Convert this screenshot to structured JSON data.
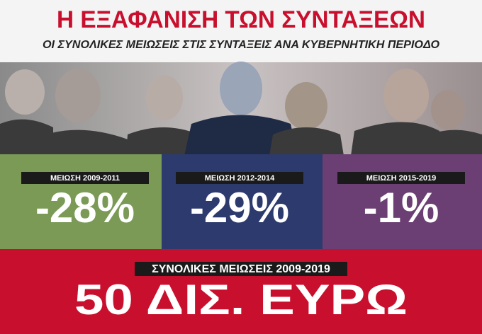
{
  "header": {
    "title": "Η ΕΞΑΦΑΝΙΣΗ ΤΩΝ ΣΥΝΤΑΞΕΩΝ",
    "subtitle": "ΟΙ ΣΥΝΟΛΙΚΕΣ ΜΕΙΩΣΕΙΣ ΣΤΙΣ ΣΥΝΤΑΞΕΙΣ ΑΝΑ ΚΥΒΕΡΝΗΤΙΚΗ ΠΕΡΙΟΔΟ"
  },
  "panels": [
    {
      "label": "ΜΕΙΩΣΗ 2009-2011",
      "value": "-28%"
    },
    {
      "label": "ΜΕΙΩΣΗ 2012-2014",
      "value": "-29%"
    },
    {
      "label": "ΜΕΙΩΣΗ 2015-2019",
      "value": "-1%"
    }
  ],
  "footer": {
    "label": "ΣΥΝΟΛΙΚΕΣ ΜΕΙΩΣΕΙΣ 2009-2019",
    "total": "50 ΔΙΣ. ΕΥΡΩ"
  }
}
